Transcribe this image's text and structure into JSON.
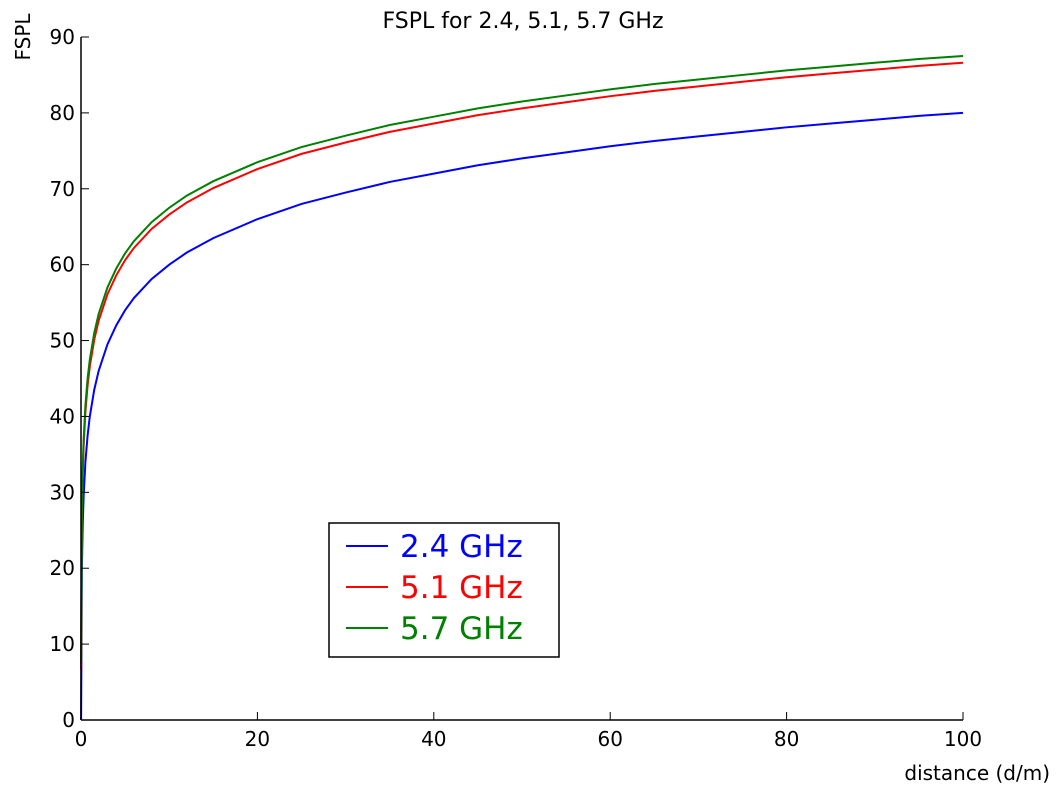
{
  "chart_data": {
    "type": "line",
    "title": "FSPL for 2.4, 5.1, 5.7 GHz",
    "xlabel": "distance (d/m)",
    "ylabel": "FSPL",
    "xlim": [
      0,
      100
    ],
    "ylim": [
      0,
      90
    ],
    "xticks": [
      0,
      20,
      40,
      60,
      80,
      100
    ],
    "yticks": [
      0,
      10,
      20,
      30,
      40,
      50,
      60,
      70,
      80,
      90
    ],
    "xtick_labels": [
      "0",
      "20",
      "40",
      "60",
      "80",
      "100"
    ],
    "ytick_labels": [
      "0",
      "10",
      "20",
      "30",
      "40",
      "50",
      "60",
      "70",
      "80",
      "90"
    ],
    "grid": false,
    "legend_position": "lower-center",
    "x": [
      0.01,
      0.1,
      0.2,
      0.3,
      0.5,
      0.75,
      1,
      1.5,
      2,
      3,
      4,
      5,
      6,
      8,
      10,
      12,
      15,
      20,
      25,
      30,
      35,
      40,
      45,
      50,
      55,
      60,
      65,
      70,
      75,
      80,
      85,
      90,
      95,
      100
    ],
    "series": [
      {
        "name": "2.4 GHz",
        "color": "#0000ff",
        "values": [
          0.0,
          20.0,
          26.0,
          29.5,
          34.0,
          37.5,
          40.0,
          43.5,
          46.0,
          49.5,
          52.0,
          54.0,
          55.6,
          58.1,
          60.0,
          61.6,
          63.5,
          66.0,
          68.0,
          69.5,
          70.9,
          72.0,
          73.1,
          74.0,
          74.8,
          75.6,
          76.3,
          76.9,
          77.5,
          78.1,
          78.6,
          79.1,
          79.6,
          80.0
        ]
      },
      {
        "name": "5.1 GHz",
        "color": "#ff0000",
        "values": [
          6.6,
          26.6,
          32.6,
          36.1,
          40.6,
          44.1,
          46.6,
          50.1,
          52.6,
          56.1,
          58.6,
          60.6,
          62.2,
          64.7,
          66.6,
          68.2,
          70.1,
          72.6,
          74.6,
          76.1,
          77.5,
          78.6,
          79.7,
          80.6,
          81.4,
          82.2,
          82.9,
          83.5,
          84.1,
          84.7,
          85.2,
          85.7,
          86.2,
          86.6
        ]
      },
      {
        "name": "5.7 GHz",
        "color": "#008000",
        "values": [
          7.5,
          27.5,
          33.5,
          37.0,
          41.5,
          45.0,
          47.5,
          51.0,
          53.5,
          57.0,
          59.5,
          61.5,
          63.1,
          65.6,
          67.5,
          69.1,
          71.0,
          73.5,
          75.5,
          77.0,
          78.4,
          79.5,
          80.6,
          81.5,
          82.3,
          83.1,
          83.8,
          84.4,
          85.0,
          85.6,
          86.1,
          86.6,
          87.1,
          87.5
        ]
      }
    ]
  }
}
